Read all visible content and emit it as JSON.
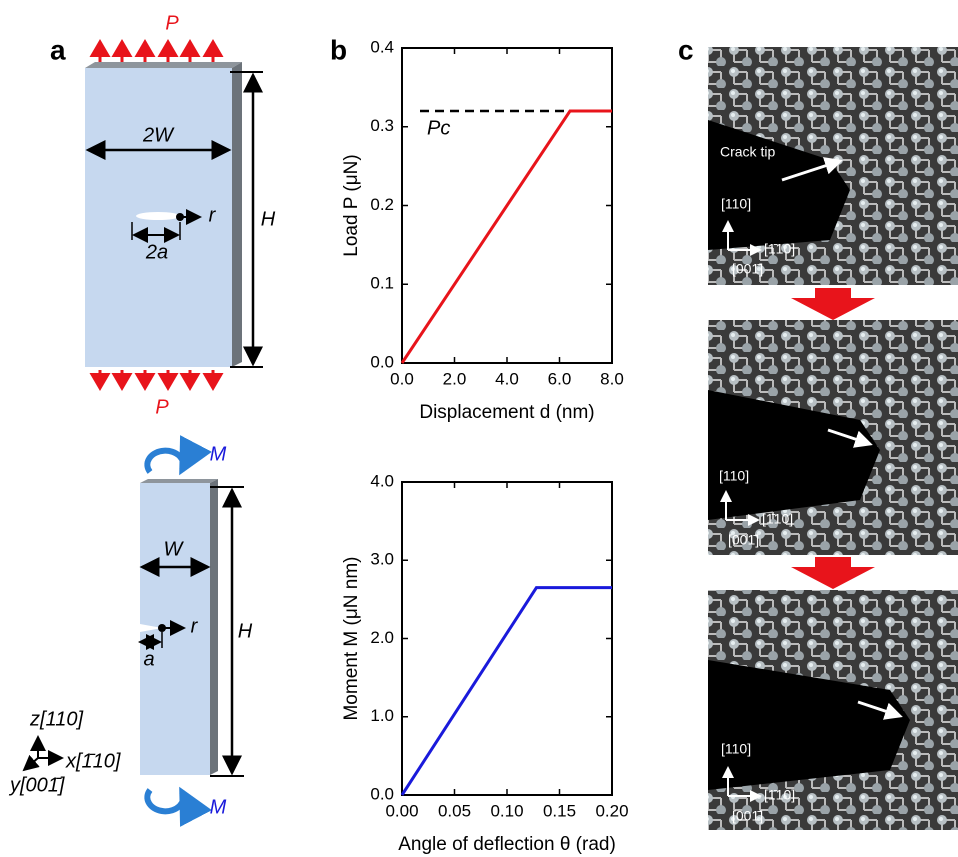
{
  "panel_a": {
    "label": "a",
    "tension": {
      "load_top": "P",
      "width": "2W",
      "height": "H",
      "r": "r",
      "crack": "2a",
      "load_bottom": "P"
    },
    "bending": {
      "moment_top": "M",
      "width": "W",
      "height": "H",
      "r": "r",
      "crack": "a",
      "moment_bottom": "M"
    },
    "axes": {
      "z": "z[110]",
      "x": "x[1̄10]",
      "y": "y[001̄]"
    }
  },
  "panel_b": {
    "label": "b"
  },
  "chart_data": [
    {
      "type": "line",
      "xlabel": "Displacement  d  (nm)",
      "ylabel": "Load  P  (μN)",
      "x": [
        0,
        6.4,
        8
      ],
      "series": [
        {
          "color": "#e8141b",
          "values": [
            0,
            0.32,
            0.32
          ]
        }
      ],
      "xlim": [
        0,
        8
      ],
      "ylim": [
        0,
        0.4
      ],
      "xticks": [
        {
          "value": 0,
          "label": "0.0"
        },
        {
          "value": 2,
          "label": "2.0"
        },
        {
          "value": 4,
          "label": "4.0"
        },
        {
          "value": 6,
          "label": "6.0"
        },
        {
          "value": 8,
          "label": "8.0"
        }
      ],
      "yticks": [
        {
          "value": 0,
          "label": "0.0"
        },
        0.1,
        0.2,
        0.3,
        0.4
      ],
      "reference_line": {
        "value": 0.32,
        "label": "Pc",
        "style": "dashed"
      }
    },
    {
      "type": "line",
      "xlabel": "Angle of deflection  θ  (rad)",
      "ylabel": "Moment  M  (μN nm)",
      "x": [
        0,
        0.128,
        0.2
      ],
      "series": [
        {
          "color": "#1a1adb",
          "values": [
            0,
            2.65,
            2.65
          ]
        }
      ],
      "xlim": [
        0,
        0.2
      ],
      "ylim": [
        0,
        4
      ],
      "xticks": [
        {
          "value": 0,
          "label": "0.00"
        },
        0.05,
        {
          "value": 0.1,
          "label": "0.10"
        },
        0.15,
        {
          "value": 0.2,
          "label": "0.20"
        }
      ],
      "yticks": [
        {
          "value": 0,
          "label": "0.0"
        },
        {
          "value": 1,
          "label": "1.0"
        },
        {
          "value": 2,
          "label": "2.0"
        },
        {
          "value": 3,
          "label": "3.0"
        },
        {
          "value": 4,
          "label": "4.0"
        }
      ]
    }
  ],
  "panel_c": {
    "label": "c",
    "frames": [
      {
        "annotation": "Crack tip",
        "axis_labels": {
          "up": "[110]",
          "right": "[1̄10]",
          "out": "[001̄]"
        }
      },
      {
        "axis_labels": {
          "up": "[110]",
          "right": "[1̄10]",
          "out": "[001̄]"
        }
      },
      {
        "axis_labels": {
          "up": "[110]",
          "right": "[1̄10]",
          "out": "[001̄]"
        }
      }
    ]
  }
}
